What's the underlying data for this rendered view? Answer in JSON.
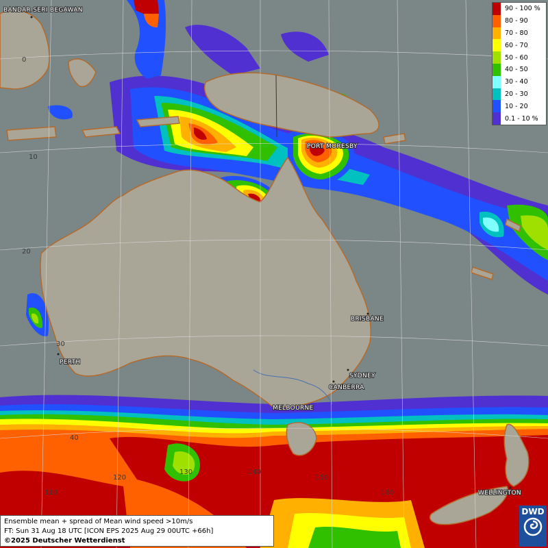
{
  "legend": {
    "items": [
      {
        "label": "90 - 100 %",
        "color": "#c00000"
      },
      {
        "label": "80 - 90",
        "color": "#ff6000"
      },
      {
        "label": "70 - 80",
        "color": "#ffb000"
      },
      {
        "label": "60 - 70",
        "color": "#ffff00"
      },
      {
        "label": "50 - 60",
        "color": "#a0e000"
      },
      {
        "label": "40 - 50",
        "color": "#30c000"
      },
      {
        "label": "30 - 40",
        "color": "#80ffff"
      },
      {
        "label": "20 - 30",
        "color": "#00c0c0"
      },
      {
        "label": "10 - 20",
        "color": "#2050ff"
      },
      {
        "label": "0.1 - 10 %",
        "color": "#5030d0"
      }
    ]
  },
  "cities": {
    "bandar": "BANDAR SERI BEGAWAN",
    "port_moresby": "PORT MORESBY",
    "brisbane": "BRISBANE",
    "perth": "PERTH",
    "sydney": "SYDNEY",
    "canberra": "CANBERRA",
    "melbourne": "MELBOURNE",
    "wellington": "WELLINGTON"
  },
  "grid_labels": {
    "lat_0": "0",
    "lat_10": "10",
    "lat_20": "20",
    "lat_30": "30",
    "lat_40": "40",
    "lon_110": "110",
    "lon_120": "120",
    "lon_130": "130",
    "lon_140": "140",
    "lon_150": "150",
    "lon_160": "160"
  },
  "info": {
    "line1": "Ensemble mean + spread of Mean wind speed >10m/s",
    "line2": "FT: Sun 31 Aug 18 UTC [ICON EPS 2025 Aug 29 00UTC +66h]",
    "line3": "©2025 Deutscher Wetterdienst"
  },
  "logo": {
    "text": "DWD",
    "icon": "dwd-swirl-icon"
  }
}
